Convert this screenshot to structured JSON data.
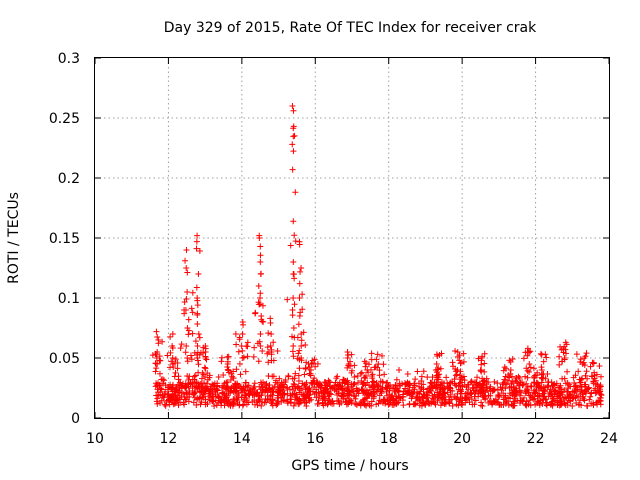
{
  "chart_data": {
    "type": "scatter",
    "title": "Day 329 of 2015, Rate Of TEC Index for receiver crak",
    "xlabel": "GPS time / hours",
    "ylabel": "ROTI / TECUs",
    "xlim": [
      10,
      24
    ],
    "ylim": [
      0,
      0.3
    ],
    "xticks": [
      "10",
      "12",
      "14",
      "16",
      "18",
      "20",
      "22",
      "24"
    ],
    "yticks": [
      "0",
      "0.05",
      "0.1",
      "0.15",
      "0.2",
      "0.25",
      "0.3"
    ],
    "grid": true,
    "marker": "+",
    "series": [
      {
        "name": "ROTI",
        "color": "#ff0000",
        "x_range": [
          11.65,
          23.8
        ],
        "baseline": [
          0.01,
          0.03
        ],
        "spikes": [
          {
            "x": 11.7,
            "values": [
              0.055,
              0.065,
              0.072,
              0.045,
              0.05
            ]
          },
          {
            "x": 12.1,
            "values": [
              0.07,
              0.06,
              0.05,
              0.045
            ]
          },
          {
            "x": 12.5,
            "values": [
              0.14,
              0.125,
              0.105,
              0.09,
              0.075,
              0.06,
              0.05,
              0.035
            ]
          },
          {
            "x": 12.8,
            "values": [
              0.152,
              0.147,
              0.12,
              0.1,
              0.087,
              0.07,
              0.06,
              0.05
            ]
          },
          {
            "x": 13.0,
            "values": [
              0.06,
              0.055,
              0.05
            ]
          },
          {
            "x": 13.6,
            "values": [
              0.045,
              0.04
            ]
          },
          {
            "x": 14.0,
            "values": [
              0.08,
              0.07,
              0.06,
              0.05
            ]
          },
          {
            "x": 14.5,
            "values": [
              0.152,
              0.15,
              0.13,
              0.12,
              0.104,
              0.1,
              0.085,
              0.07,
              0.06
            ]
          },
          {
            "x": 14.8,
            "values": [
              0.083,
              0.07,
              0.06,
              0.055
            ]
          },
          {
            "x": 15.4,
            "values": [
              0.26,
              0.256,
              0.243,
              0.228,
              0.207,
              0.164,
              0.13,
              0.12,
              0.1,
              0.09,
              0.075,
              0.06
            ]
          },
          {
            "x": 15.6,
            "values": [
              0.125,
              0.112,
              0.1,
              0.085,
              0.07,
              0.06,
              0.05
            ]
          },
          {
            "x": 15.9,
            "values": [
              0.045,
              0.04
            ]
          },
          {
            "x": 16.9,
            "values": [
              0.055,
              0.05,
              0.045
            ]
          },
          {
            "x": 17.4,
            "values": [
              0.04,
              0.035
            ]
          },
          {
            "x": 17.7,
            "values": [
              0.053,
              0.045
            ]
          },
          {
            "x": 19.3,
            "values": [
              0.053,
              0.045,
              0.04
            ]
          },
          {
            "x": 19.9,
            "values": [
              0.055,
              0.048,
              0.04
            ]
          },
          {
            "x": 20.5,
            "values": [
              0.048,
              0.04
            ]
          },
          {
            "x": 21.3,
            "values": [
              0.048,
              0.04
            ]
          },
          {
            "x": 21.8,
            "values": [
              0.058,
              0.055,
              0.045
            ]
          },
          {
            "x": 22.2,
            "values": [
              0.047,
              0.04
            ]
          },
          {
            "x": 22.8,
            "values": [
              0.063,
              0.057,
              0.05
            ]
          },
          {
            "x": 23.3,
            "values": [
              0.05,
              0.045
            ]
          },
          {
            "x": 23.6,
            "values": [
              0.033,
              0.03
            ]
          }
        ]
      }
    ]
  }
}
